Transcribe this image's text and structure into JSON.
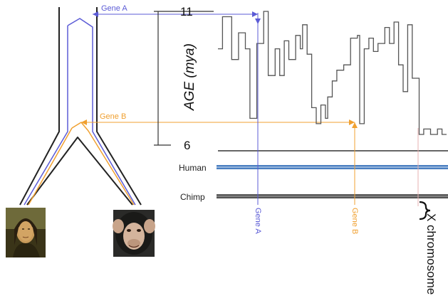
{
  "tree": {
    "gene_a_label": "Gene A",
    "gene_b_label": "Gene B"
  },
  "plot": {
    "y_axis_label": "AGE (mya)",
    "y_tick_top": "11",
    "y_tick_bottom": "6",
    "trace_points": [
      [
        0.0,
        9.6
      ],
      [
        0.02,
        9.6
      ],
      [
        0.02,
        10.8
      ],
      [
        0.06,
        10.8
      ],
      [
        0.06,
        9.2
      ],
      [
        0.09,
        9.2
      ],
      [
        0.09,
        10.2
      ],
      [
        0.12,
        10.2
      ],
      [
        0.12,
        9.6
      ],
      [
        0.14,
        9.6
      ],
      [
        0.14,
        7.0
      ],
      [
        0.17,
        7.0
      ],
      [
        0.17,
        9.8
      ],
      [
        0.2,
        9.8
      ],
      [
        0.2,
        11.0
      ],
      [
        0.22,
        11.0
      ],
      [
        0.22,
        8.6
      ],
      [
        0.25,
        8.6
      ],
      [
        0.25,
        9.6
      ],
      [
        0.27,
        9.6
      ],
      [
        0.27,
        8.6
      ],
      [
        0.29,
        8.6
      ],
      [
        0.29,
        9.9
      ],
      [
        0.31,
        9.9
      ],
      [
        0.31,
        9.2
      ],
      [
        0.34,
        9.2
      ],
      [
        0.34,
        10.1
      ],
      [
        0.36,
        10.1
      ],
      [
        0.36,
        9.6
      ],
      [
        0.37,
        9.6
      ],
      [
        0.37,
        10.5
      ],
      [
        0.39,
        10.5
      ],
      [
        0.39,
        9.4
      ],
      [
        0.41,
        9.4
      ],
      [
        0.41,
        7.4
      ],
      [
        0.43,
        7.4
      ],
      [
        0.43,
        6.8
      ],
      [
        0.45,
        6.8
      ],
      [
        0.45,
        7.5
      ],
      [
        0.47,
        7.5
      ],
      [
        0.47,
        7.0
      ],
      [
        0.48,
        7.0
      ],
      [
        0.48,
        7.8
      ],
      [
        0.5,
        7.8
      ],
      [
        0.5,
        8.4
      ],
      [
        0.52,
        8.4
      ],
      [
        0.52,
        8.8
      ],
      [
        0.55,
        8.8
      ],
      [
        0.55,
        9.0
      ],
      [
        0.58,
        9.0
      ],
      [
        0.58,
        10.0
      ],
      [
        0.61,
        10.0
      ],
      [
        0.61,
        10.1
      ],
      [
        0.62,
        10.1
      ],
      [
        0.62,
        6.8
      ],
      [
        0.64,
        6.8
      ],
      [
        0.64,
        9.6
      ],
      [
        0.66,
        9.6
      ],
      [
        0.66,
        10.0
      ],
      [
        0.68,
        10.0
      ],
      [
        0.68,
        9.5
      ],
      [
        0.7,
        9.5
      ],
      [
        0.7,
        9.8
      ],
      [
        0.73,
        9.8
      ],
      [
        0.73,
        10.4
      ],
      [
        0.75,
        10.4
      ],
      [
        0.75,
        9.8
      ],
      [
        0.77,
        9.8
      ],
      [
        0.77,
        10.6
      ],
      [
        0.79,
        10.6
      ],
      [
        0.79,
        9.0
      ],
      [
        0.81,
        9.0
      ],
      [
        0.81,
        8.0
      ],
      [
        0.83,
        8.0
      ],
      [
        0.83,
        10.5
      ],
      [
        0.85,
        10.5
      ],
      [
        0.85,
        8.5
      ],
      [
        0.88,
        8.5
      ],
      [
        0.88,
        6.4
      ],
      [
        0.9,
        6.4
      ],
      [
        0.9,
        6.6
      ],
      [
        0.93,
        6.6
      ],
      [
        0.93,
        6.4
      ],
      [
        0.96,
        6.4
      ],
      [
        0.96,
        6.6
      ],
      [
        0.98,
        6.6
      ],
      [
        0.98,
        6.4
      ],
      [
        1.0,
        6.4
      ]
    ]
  },
  "tracks": {
    "human_label": "Human",
    "chimp_label": "Chimp",
    "human_color": "#4a7fc0",
    "chimp_color": "#555555"
  },
  "markers": {
    "gene_a_label": "Gene A",
    "gene_b_label": "Gene B",
    "x_chromosome_label": "X chromosome",
    "gene_a_color": "#5b5bd6",
    "gene_b_color": "#f0a030"
  },
  "portraits": {
    "human_alt": "human-portrait",
    "chimp_alt": "chimp-portrait"
  }
}
